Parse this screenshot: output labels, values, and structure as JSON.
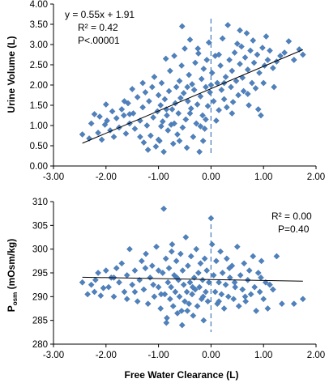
{
  "chart_data": [
    {
      "type": "scatter",
      "xlim": [
        -3.0,
        2.0
      ],
      "ylim": [
        0.0,
        4.0
      ],
      "x_ticks": [
        "-3.00",
        "-2.00",
        "-1.00",
        "0.00",
        "1.00",
        "2.00"
      ],
      "y_ticks": [
        "0.00",
        "0.50",
        "1.00",
        "1.50",
        "2.00",
        "2.50",
        "3.00",
        "3.50",
        "4.00"
      ],
      "ylabel": "Urine Volume  (L)",
      "xlabel": "",
      "grid": false,
      "marker_color": "#4F81BD",
      "reference_line_x": 0.0,
      "trendline": {
        "slope": 0.55,
        "intercept": 1.91
      },
      "annotations": [
        "y = 0.55x + 1.91",
        "R² = 0.42",
        "P<.00001"
      ],
      "points": [
        [
          -2.45,
          0.78
        ],
        [
          -2.32,
          0.68
        ],
        [
          -2.28,
          1.05
        ],
        [
          -2.22,
          1.28
        ],
        [
          -2.15,
          0.82
        ],
        [
          -2.12,
          1.22
        ],
        [
          -2.08,
          0.65
        ],
        [
          -2.02,
          1.02
        ],
        [
          -1.98,
          1.12
        ],
        [
          -1.92,
          0.88
        ],
        [
          -1.88,
          1.35
        ],
        [
          -1.85,
          0.72
        ],
        [
          -1.8,
          1.18
        ],
        [
          -1.75,
          0.95
        ],
        [
          -1.7,
          1.4
        ],
        [
          -1.66,
          1.25
        ],
        [
          -1.62,
          0.8
        ],
        [
          -1.58,
          1.55
        ],
        [
          -1.55,
          1.05
        ],
        [
          -1.5,
          1.9
        ],
        [
          -1.48,
          1.3
        ],
        [
          -1.45,
          0.92
        ],
        [
          -1.4,
          1.7
        ],
        [
          -1.35,
          1.12
        ],
        [
          -1.3,
          1.45
        ],
        [
          -1.28,
          0.58
        ],
        [
          -1.25,
          1.82
        ],
        [
          -1.22,
          1.0
        ],
        [
          -1.18,
          1.6
        ],
        [
          -1.15,
          0.75
        ],
        [
          -1.12,
          1.95
        ],
        [
          -1.1,
          1.2
        ],
        [
          -1.08,
          2.2
        ],
        [
          -1.05,
          0.48
        ],
        [
          -1.02,
          1.35
        ],
        [
          -1.0,
          1.75
        ],
        [
          -0.98,
          0.62
        ],
        [
          -0.96,
          1.5
        ],
        [
          -0.94,
          2.05
        ],
        [
          -0.92,
          1.1
        ],
        [
          -0.9,
          0.35
        ],
        [
          -0.88,
          1.65
        ],
        [
          -0.86,
          2.65
        ],
        [
          -0.84,
          1.25
        ],
        [
          -0.82,
          0.88
        ],
        [
          -0.8,
          1.85
        ],
        [
          -0.78,
          2.35
        ],
        [
          -0.76,
          1.02
        ],
        [
          -0.74,
          1.4
        ],
        [
          -0.72,
          0.55
        ],
        [
          -0.7,
          2.72
        ],
        [
          -0.68,
          1.55
        ],
        [
          -0.66,
          1.95
        ],
        [
          -0.64,
          0.78
        ],
        [
          -0.62,
          1.3
        ],
        [
          -0.6,
          2.1
        ],
        [
          -0.58,
          1.68
        ],
        [
          -0.56,
          2.48
        ],
        [
          -0.54,
          0.95
        ],
        [
          -0.52,
          1.8
        ],
        [
          -0.5,
          2.9
        ],
        [
          -0.48,
          1.15
        ],
        [
          -0.46,
          0.45
        ],
        [
          -0.44,
          1.6
        ],
        [
          -0.42,
          2.25
        ],
        [
          -0.4,
          3.12
        ],
        [
          -0.38,
          1.42
        ],
        [
          -0.36,
          2.02
        ],
        [
          -0.34,
          0.72
        ],
        [
          -0.32,
          1.88
        ],
        [
          -0.3,
          2.55
        ],
        [
          -0.28,
          1.05
        ],
        [
          -0.26,
          1.52
        ],
        [
          -0.24,
          2.78
        ],
        [
          -0.22,
          0.35
        ],
        [
          -0.2,
          1.72
        ],
        [
          -0.18,
          2.15
        ],
        [
          -0.16,
          1.25
        ],
        [
          -0.14,
          2.4
        ],
        [
          -0.12,
          0.92
        ],
        [
          -0.1,
          1.95
        ],
        [
          -0.08,
          2.62
        ],
        [
          -0.06,
          1.48
        ],
        [
          -0.04,
          3.05
        ],
        [
          -0.02,
          1.82
        ],
        [
          0.02,
          2.3
        ],
        [
          0.05,
          1.6
        ],
        [
          0.08,
          2.72
        ],
        [
          0.1,
          1.12
        ],
        [
          0.12,
          2.05
        ],
        [
          0.15,
          1.38
        ],
        [
          0.18,
          2.48
        ],
        [
          0.2,
          1.88
        ],
        [
          0.22,
          3.15
        ],
        [
          0.25,
          1.65
        ],
        [
          0.28,
          2.2
        ],
        [
          0.3,
          1.45
        ],
        [
          0.32,
          3.48
        ],
        [
          0.35,
          2.62
        ],
        [
          0.38,
          1.95
        ],
        [
          0.4,
          2.35
        ],
        [
          0.42,
          1.58
        ],
        [
          0.45,
          2.8
        ],
        [
          0.48,
          2.1
        ],
        [
          0.5,
          3.02
        ],
        [
          0.52,
          1.75
        ],
        [
          0.55,
          2.52
        ],
        [
          0.58,
          2.95
        ],
        [
          0.6,
          2.18
        ],
        [
          0.62,
          1.85
        ],
        [
          0.65,
          2.68
        ],
        [
          0.68,
          3.28
        ],
        [
          0.7,
          2.38
        ],
        [
          0.72,
          1.5
        ],
        [
          0.75,
          2.85
        ],
        [
          0.78,
          2.05
        ],
        [
          0.8,
          3.1
        ],
        [
          0.82,
          2.55
        ],
        [
          0.85,
          1.92
        ],
        [
          0.88,
          2.75
        ],
        [
          0.92,
          2.3
        ],
        [
          0.95,
          1.25
        ],
        [
          0.98,
          2.92
        ],
        [
          1.02,
          2.48
        ],
        [
          1.05,
          3.2
        ],
        [
          1.08,
          2.62
        ],
        [
          1.12,
          2.85
        ],
        [
          1.18,
          2.42
        ],
        [
          1.25,
          2.58
        ],
        [
          1.32,
          2.72
        ],
        [
          1.4,
          2.8
        ],
        [
          1.48,
          3.08
        ],
        [
          1.58,
          2.62
        ],
        [
          1.68,
          2.88
        ],
        [
          1.75,
          2.75
        ],
        [
          -1.2,
          0.4
        ],
        [
          -1.0,
          0.65
        ],
        [
          -0.6,
          0.62
        ],
        [
          -0.2,
          0.98
        ],
        [
          0.0,
          2.0
        ],
        [
          -0.4,
          1.3
        ],
        [
          -0.7,
          1.05
        ],
        [
          -1.35,
          0.72
        ],
        [
          -1.55,
          1.28
        ],
        [
          -0.85,
          1.4
        ],
        [
          -0.45,
          1.95
        ],
        [
          0.25,
          2.05
        ],
        [
          0.4,
          1.3
        ],
        [
          -0.15,
          0.62
        ],
        [
          -0.95,
          0.98
        ],
        [
          -1.65,
          1.6
        ],
        [
          -2.0,
          1.52
        ],
        [
          -1.3,
          2.05
        ],
        [
          -0.25,
          2.9
        ],
        [
          0.55,
          3.35
        ],
        [
          0.15,
          2.75
        ],
        [
          -0.55,
          3.45
        ],
        [
          -0.1,
          1.15
        ],
        [
          0.7,
          1.78
        ],
        [
          1.0,
          2.05
        ],
        [
          0.9,
          1.4
        ],
        [
          1.2,
          1.95
        ]
      ]
    },
    {
      "type": "scatter",
      "xlim": [
        -3.0,
        2.0
      ],
      "ylim": [
        280,
        310
      ],
      "x_ticks": [
        "-3.00",
        "-2.00",
        "-1.00",
        "0.00",
        "1.00",
        "2.00"
      ],
      "y_ticks": [
        "280",
        "285",
        "290",
        "295",
        "300",
        "305",
        "310"
      ],
      "ylabel_main": "P",
      "ylabel_sub": "osm",
      "ylabel_rest": " (mOsm/kg)",
      "xlabel": "Free Water Clearance (L)",
      "grid": false,
      "marker_color": "#4F81BD",
      "reference_line_x": 0.0,
      "trendline": {
        "slope": -0.2,
        "intercept": 293.6
      },
      "annotations": [
        "R² = 0.00",
        "P=0.40"
      ],
      "points": [
        [
          -2.45,
          293.0
        ],
        [
          -2.35,
          290.5
        ],
        [
          -2.28,
          292.5
        ],
        [
          -2.22,
          291.0
        ],
        [
          -2.15,
          295.0
        ],
        [
          -2.1,
          290.2
        ],
        [
          -2.05,
          291.8
        ],
        [
          -2.0,
          295.5
        ],
        [
          -1.95,
          292.0
        ],
        [
          -1.9,
          294.0
        ],
        [
          -1.85,
          290.0
        ],
        [
          -1.8,
          296.0
        ],
        [
          -1.75,
          293.0
        ],
        [
          -1.7,
          297.0
        ],
        [
          -1.65,
          291.0
        ],
        [
          -1.6,
          294.5
        ],
        [
          -1.55,
          300.0
        ],
        [
          -1.5,
          292.5
        ],
        [
          -1.45,
          295.5
        ],
        [
          -1.4,
          289.0
        ],
        [
          -1.36,
          293.5
        ],
        [
          -1.32,
          297.5
        ],
        [
          -1.28,
          291.5
        ],
        [
          -1.24,
          299.0
        ],
        [
          -1.2,
          288.5
        ],
        [
          -1.16,
          294.0
        ],
        [
          -1.12,
          296.5
        ],
        [
          -1.08,
          290.0
        ],
        [
          -1.04,
          300.5
        ],
        [
          -1.0,
          292.0
        ],
        [
          -0.96,
          287.5
        ],
        [
          -0.92,
          295.0
        ],
        [
          -0.9,
          308.5
        ],
        [
          -0.88,
          290.5
        ],
        [
          -0.86,
          298.0
        ],
        [
          -0.84,
          285.5
        ],
        [
          -0.82,
          293.0
        ],
        [
          -0.8,
          296.0
        ],
        [
          -0.78,
          289.5
        ],
        [
          -0.76,
          292.0
        ],
        [
          -0.74,
          301.0
        ],
        [
          -0.72,
          288.0
        ],
        [
          -0.7,
          294.5
        ],
        [
          -0.68,
          291.0
        ],
        [
          -0.66,
          297.5
        ],
        [
          -0.64,
          286.5
        ],
        [
          -0.62,
          293.5
        ],
        [
          -0.6,
          290.0
        ],
        [
          -0.58,
          299.0
        ],
        [
          -0.56,
          287.0
        ],
        [
          -0.54,
          295.5
        ],
        [
          -0.52,
          292.5
        ],
        [
          -0.5,
          289.0
        ],
        [
          -0.48,
          302.5
        ],
        [
          -0.46,
          291.0
        ],
        [
          -0.44,
          296.5
        ],
        [
          -0.42,
          288.5
        ],
        [
          -0.4,
          293.0
        ],
        [
          -0.38,
          298.5
        ],
        [
          -0.36,
          290.5
        ],
        [
          -0.34,
          286.0
        ],
        [
          -0.32,
          294.0
        ],
        [
          -0.3,
          291.5
        ],
        [
          -0.28,
          300.0
        ],
        [
          -0.26,
          288.0
        ],
        [
          -0.24,
          295.0
        ],
        [
          -0.22,
          292.0
        ],
        [
          -0.2,
          297.0
        ],
        [
          -0.18,
          289.5
        ],
        [
          -0.16,
          293.5
        ],
        [
          -0.14,
          285.0
        ],
        [
          -0.12,
          298.0
        ],
        [
          -0.1,
          291.0
        ],
        [
          -0.08,
          295.5
        ],
        [
          -0.06,
          289.0
        ],
        [
          -0.04,
          293.0
        ],
        [
          0.0,
          306.5
        ],
        [
          0.02,
          301.0
        ],
        [
          0.05,
          294.5
        ],
        [
          0.08,
          291.0
        ],
        [
          0.1,
          297.5
        ],
        [
          0.12,
          288.5
        ],
        [
          0.15,
          293.0
        ],
        [
          0.18,
          299.5
        ],
        [
          0.2,
          290.5
        ],
        [
          0.22,
          295.0
        ],
        [
          0.25,
          287.5
        ],
        [
          0.28,
          292.5
        ],
        [
          0.3,
          298.0
        ],
        [
          0.33,
          290.0
        ],
        [
          0.36,
          294.0
        ],
        [
          0.4,
          296.5
        ],
        [
          0.43,
          289.5
        ],
        [
          0.46,
          292.0
        ],
        [
          0.5,
          300.5
        ],
        [
          0.53,
          288.0
        ],
        [
          0.56,
          294.5
        ],
        [
          0.6,
          291.5
        ],
        [
          0.63,
          297.0
        ],
        [
          0.66,
          289.0
        ],
        [
          0.7,
          293.5
        ],
        [
          0.73,
          295.5
        ],
        [
          0.76,
          290.5
        ],
        [
          0.8,
          298.5
        ],
        [
          0.83,
          292.0
        ],
        [
          0.86,
          287.0
        ],
        [
          0.9,
          295.0
        ],
        [
          0.93,
          291.0
        ],
        [
          0.96,
          297.5
        ],
        [
          1.0,
          289.5
        ],
        [
          1.04,
          293.0
        ],
        [
          1.08,
          287.5
        ],
        [
          1.12,
          292.5
        ],
        [
          1.18,
          291.5
        ],
        [
          1.25,
          298.5
        ],
        [
          1.35,
          288.5
        ],
        [
          1.58,
          288.5
        ],
        [
          1.75,
          289.5
        ],
        [
          -1.1,
          292.5
        ],
        [
          -0.95,
          290.5
        ],
        [
          -0.65,
          294.0
        ],
        [
          -0.35,
          292.0
        ],
        [
          -1.25,
          296.0
        ],
        [
          -0.75,
          299.5
        ],
        [
          -0.45,
          287.0
        ],
        [
          0.35,
          296.0
        ],
        [
          0.65,
          290.0
        ],
        [
          -1.6,
          289.5
        ],
        [
          -1.85,
          294.0
        ],
        [
          -2.2,
          293.5
        ],
        [
          -0.15,
          290.0
        ],
        [
          0.15,
          289.0
        ],
        [
          -0.55,
          284.0
        ],
        [
          -0.85,
          284.5
        ],
        [
          0.45,
          293.0
        ],
        [
          -1.45,
          291.0
        ],
        [
          -1.0,
          295.5
        ],
        [
          0.95,
          294.0
        ]
      ]
    }
  ]
}
